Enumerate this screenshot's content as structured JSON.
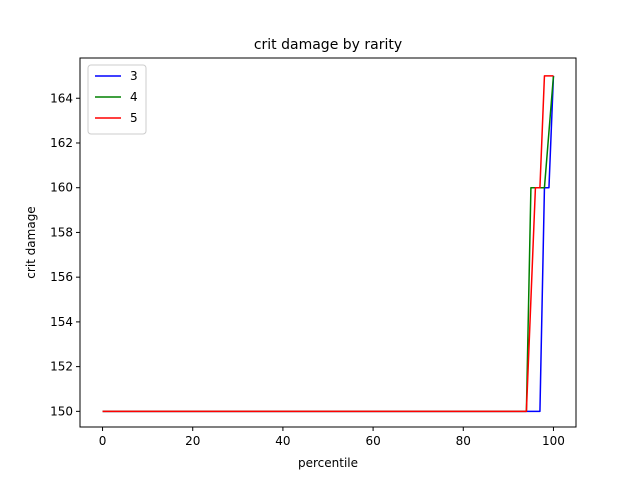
{
  "chart_data": {
    "type": "line",
    "title": "crit damage by rarity",
    "xlabel": "percentile",
    "ylabel": "crit damage",
    "xlim": [
      -5,
      105
    ],
    "ylim": [
      149.3,
      165.8
    ],
    "xticks": [
      0,
      20,
      40,
      60,
      80,
      100
    ],
    "yticks": [
      150,
      152,
      154,
      156,
      158,
      160,
      162,
      164
    ],
    "grid": false,
    "legend_position": "upper-left",
    "series": [
      {
        "name": "3",
        "color": "#0000ff",
        "x": [
          0,
          97,
          98,
          99,
          100
        ],
        "y": [
          150,
          150,
          160,
          160,
          165
        ]
      },
      {
        "name": "4",
        "color": "#008000",
        "x": [
          0,
          94,
          95,
          98,
          100
        ],
        "y": [
          150,
          150,
          160,
          160,
          165
        ]
      },
      {
        "name": "5",
        "color": "#ff0000",
        "x": [
          0,
          94,
          96,
          97,
          98,
          100
        ],
        "y": [
          150,
          150,
          160,
          160,
          165,
          165
        ]
      }
    ]
  }
}
